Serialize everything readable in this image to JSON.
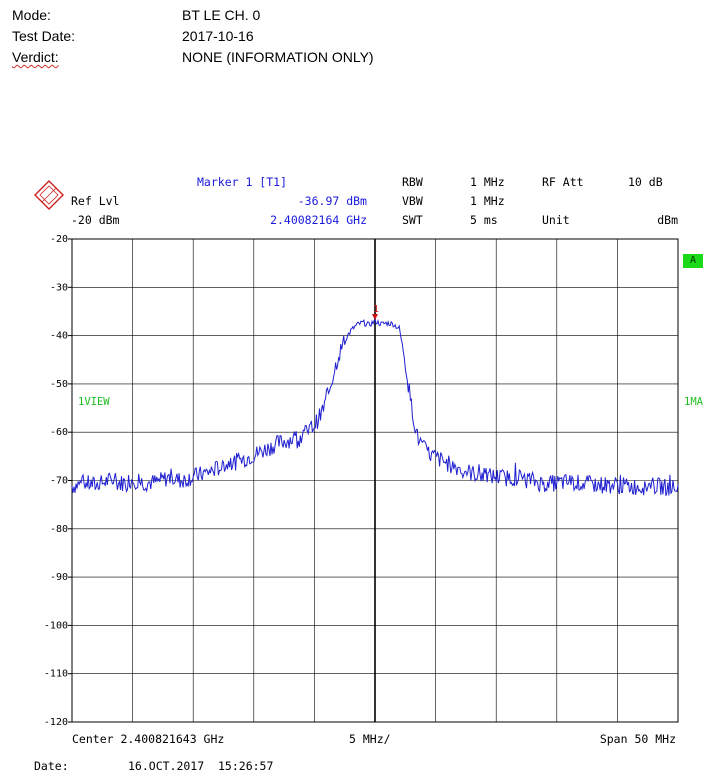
{
  "report": {
    "mode_label": "Mode:",
    "mode_value": "BT LE CH. 0",
    "date_label": "Test Date:",
    "date_value": "2017-10-16",
    "verdict_label": "Verdict:",
    "verdict_value": "NONE (INFORMATION ONLY)"
  },
  "analyzer": {
    "ref_lvl_label": "Ref Lvl",
    "ref_lvl_value": "-20 dBm",
    "marker_title": "Marker 1 [T1]",
    "marker_level": "-36.97 dBm",
    "marker_freq": "2.40082164 GHz",
    "rbw_label": "RBW",
    "rbw_value": "1 MHz",
    "vbw_label": "VBW",
    "vbw_value": "1 MHz",
    "swt_label": "SWT",
    "swt_value": "5 ms",
    "rfatt_label": "RF Att",
    "rfatt_value": "10 dB",
    "unit_label": "Unit",
    "unit_value": "dBm",
    "a_badge": "A",
    "view_label": "1VIEW",
    "trace_label": "1MA",
    "center_label": "Center 2.400821643 GHz",
    "div_label": "5 MHz/",
    "span_label": "Span 50 MHz",
    "footer_date_label": "Date:",
    "footer_date_value": "16.OCT.2017  15:26:57",
    "marker_number": "1"
  },
  "colors": {
    "trace": "#2020d0",
    "marker": "#cc1010",
    "grid": "#000000",
    "badge": "#19d919"
  },
  "chart_data": {
    "type": "line",
    "title": "",
    "xlabel": "",
    "ylabel": "",
    "xlim": [
      0,
      50
    ],
    "ylim": [
      -120,
      -20
    ],
    "y_ticks": [
      -20,
      -30,
      -40,
      -50,
      -60,
      -70,
      -80,
      -90,
      -100,
      -110,
      -120
    ],
    "y_tick_labels": [
      "-20",
      "-30",
      "-40",
      "-50",
      "-60",
      "-70",
      "-80",
      "-90",
      "-100",
      "-110",
      "-120"
    ],
    "grid": true,
    "x_divisions": 10,
    "marker": {
      "x": 25,
      "y": -36.97
    },
    "series": [
      {
        "x": [
          0,
          1,
          2,
          3,
          4,
          5,
          6,
          7,
          8,
          9,
          10,
          11,
          12,
          13,
          14,
          15,
          16,
          17,
          18,
          19,
          20,
          20.5,
          21,
          21.5,
          22,
          22.5,
          23,
          23.5,
          24,
          24.5,
          25,
          25.5,
          26,
          26.5,
          27,
          27.5,
          28,
          28.5,
          29,
          29.5,
          30,
          31,
          32,
          33,
          34,
          35,
          36,
          37,
          38,
          39,
          40,
          41,
          42,
          43,
          44,
          45,
          46,
          47,
          48,
          49,
          50
        ],
        "values": [
          -71.2,
          -70.5,
          -71.0,
          -70.0,
          -70.6,
          -69.8,
          -70.5,
          -70.3,
          -69.4,
          -70.0,
          -69.2,
          -68.5,
          -67.5,
          -66.5,
          -65.8,
          -64.7,
          -63.5,
          -62.3,
          -61.5,
          -60.8,
          -58.5,
          -56.5,
          -53.5,
          -48.5,
          -44.0,
          -41.0,
          -39.0,
          -37.8,
          -37.3,
          -37.8,
          -37.0,
          -37.6,
          -37.4,
          -37.6,
          -38.5,
          -45.5,
          -54.5,
          -61.0,
          -63.3,
          -64.5,
          -65.2,
          -66.5,
          -67.5,
          -68.5,
          -69.0,
          -69.2,
          -69.5,
          -69.3,
          -70.0,
          -70.8,
          -70.5,
          -70.3,
          -70.6,
          -70.8,
          -70.9,
          -71.0,
          -71.2,
          -71.3,
          -71.1,
          -71.4,
          -71.5
        ]
      }
    ]
  }
}
